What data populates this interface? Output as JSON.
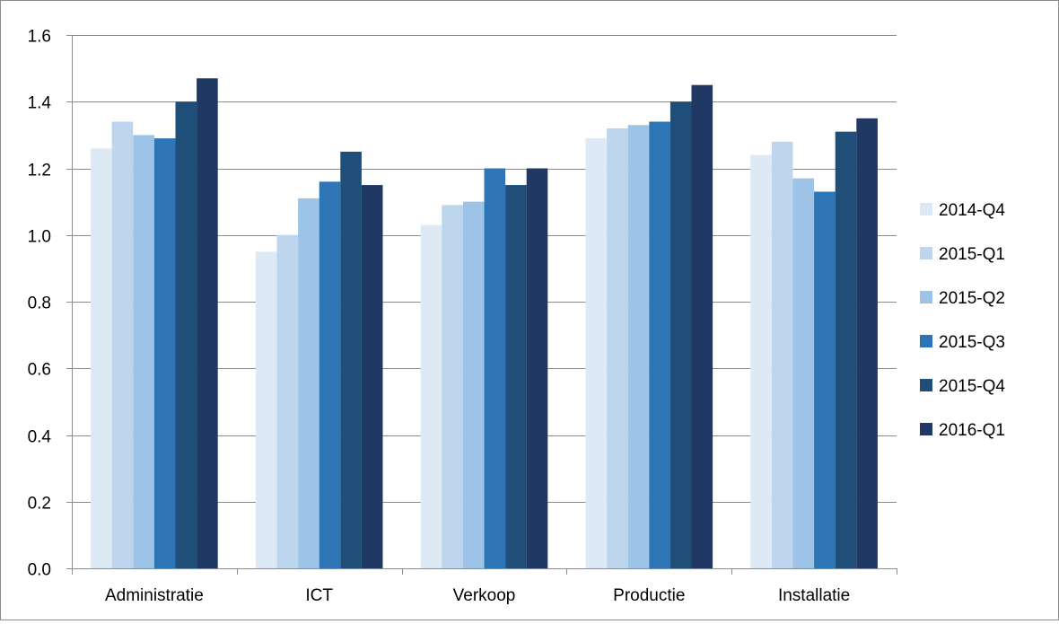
{
  "chart_data": {
    "type": "bar",
    "categories": [
      "Administratie",
      "ICT",
      "Verkoop",
      "Productie",
      "Installatie"
    ],
    "series": [
      {
        "name": "2014-Q4",
        "color": "#dde9f5",
        "values": [
          1.26,
          0.95,
          1.03,
          1.29,
          1.24
        ]
      },
      {
        "name": "2015-Q1",
        "color": "#bdd5ed",
        "values": [
          1.34,
          1.0,
          1.09,
          1.32,
          1.28
        ]
      },
      {
        "name": "2015-Q2",
        "color": "#9dc3e6",
        "values": [
          1.3,
          1.11,
          1.1,
          1.33,
          1.17
        ]
      },
      {
        "name": "2015-Q3",
        "color": "#2e75b6",
        "values": [
          1.29,
          1.16,
          1.2,
          1.34,
          1.13
        ]
      },
      {
        "name": "2015-Q4",
        "color": "#1f4e79",
        "values": [
          1.4,
          1.25,
          1.15,
          1.4,
          1.31
        ]
      },
      {
        "name": "2016-Q1",
        "color": "#203864",
        "values": [
          1.47,
          1.15,
          1.2,
          1.45,
          1.35
        ]
      }
    ],
    "yticks": [
      "0.0",
      "0.2",
      "0.4",
      "0.6",
      "0.8",
      "1.0",
      "1.2",
      "1.4",
      "1.6"
    ],
    "ylim": [
      0,
      1.6
    ],
    "grid": true,
    "legend_position": "right",
    "title": "",
    "xlabel": "",
    "ylabel": ""
  }
}
